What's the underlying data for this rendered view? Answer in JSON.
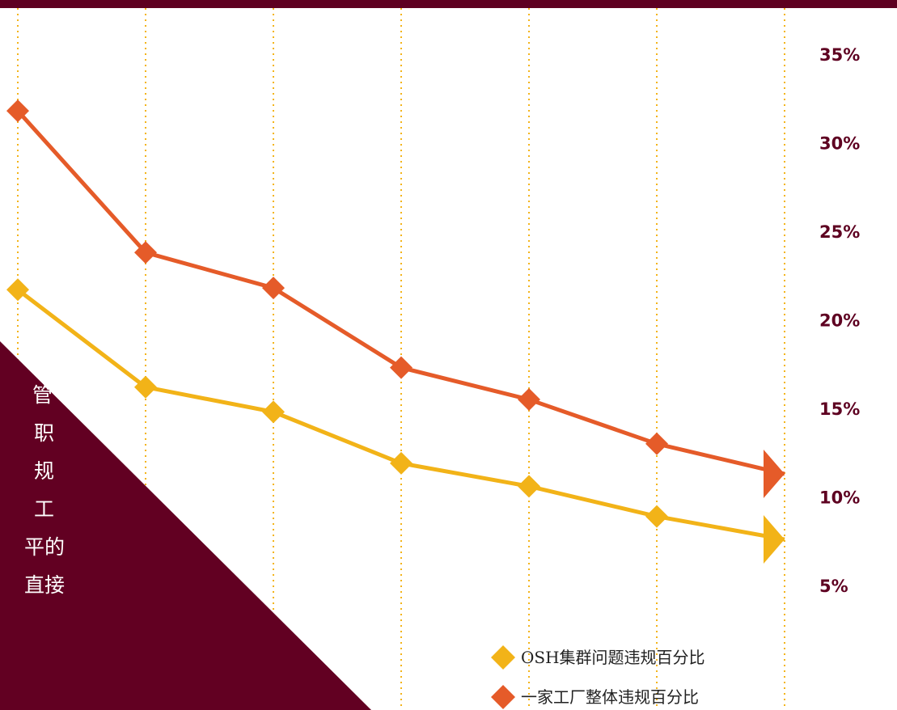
{
  "colors": {
    "background": "#ffffff",
    "top_bar": "#5e0021",
    "panel": "#620022",
    "tick_label": "#5e0021",
    "guide_lines": "#f3b41a",
    "series_factory": "#e55b29",
    "series_osh": "#f2b318",
    "panel_text": "#ffffff"
  },
  "panel": {
    "text_lines": [
      "管",
      "职",
      "规",
      "工",
      "平的",
      "直接"
    ]
  },
  "chart_data": {
    "type": "line",
    "title": "",
    "xlabel": "",
    "ylabel": "",
    "x": [
      1,
      2,
      3,
      4,
      5,
      6,
      7
    ],
    "y_ticks": [
      "35%",
      "30%",
      "25%",
      "20%",
      "15%",
      "10%",
      "5%"
    ],
    "ylim": [
      5,
      35
    ],
    "grid": "vertical-dotted",
    "legend_position": "bottom-right",
    "series": [
      {
        "name": "OSH集群问题违规百分比",
        "marker": "diamond",
        "end_marker": "arrow",
        "values": [
          21.7,
          16.2,
          14.8,
          11.9,
          10.6,
          8.9,
          7.6
        ]
      },
      {
        "name": "一家工厂整体违规百分比",
        "marker": "diamond",
        "end_marker": "arrow",
        "values": [
          31.8,
          23.8,
          21.8,
          17.3,
          15.5,
          13.0,
          11.3
        ]
      }
    ]
  }
}
